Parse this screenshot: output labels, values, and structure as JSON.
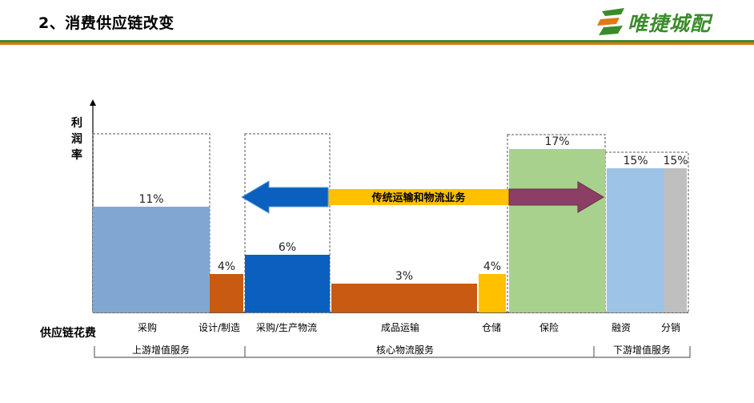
{
  "header": {
    "title": "2、消费供应链改变"
  },
  "logo": {
    "text": "唯捷城配",
    "icon": "winged-s-logo-icon",
    "color": "#3a8c2a"
  },
  "colors": {
    "accent_green": "#3a8c2a",
    "accent_orange": "#e07a14"
  },
  "chart_data": {
    "type": "bar",
    "ylabel": "利润率",
    "xlabel": "供应链花费",
    "categories": [
      "采购",
      "设计/制造",
      "采购/生产物流",
      "成品运输",
      "仓储",
      "保险",
      "融资",
      "分销"
    ],
    "values": [
      11,
      4,
      6,
      3,
      4,
      17,
      15,
      15
    ],
    "value_labels": [
      "11%",
      "4%",
      "6%",
      "3%",
      "4%",
      "17%",
      "15%",
      "15%"
    ],
    "bar_colors": [
      "#7fa7d2",
      "#c95a12",
      "#0a5fbf",
      "#c95a12",
      "#ffc000",
      "#a9d18e",
      "#9dc3e6",
      "#bfbfbf"
    ],
    "groups": [
      {
        "label": "上游增值服务",
        "categories": [
          "采购",
          "设计/制造"
        ]
      },
      {
        "label": "核心物流服务",
        "categories": [
          "采购/生产物流",
          "成品运输",
          "仓储",
          "保险"
        ]
      },
      {
        "label": "下游增值服务",
        "categories": [
          "融资",
          "分销"
        ]
      }
    ],
    "annotation": "传统运输和物流业务",
    "ylim": [
      0,
      18
    ]
  }
}
